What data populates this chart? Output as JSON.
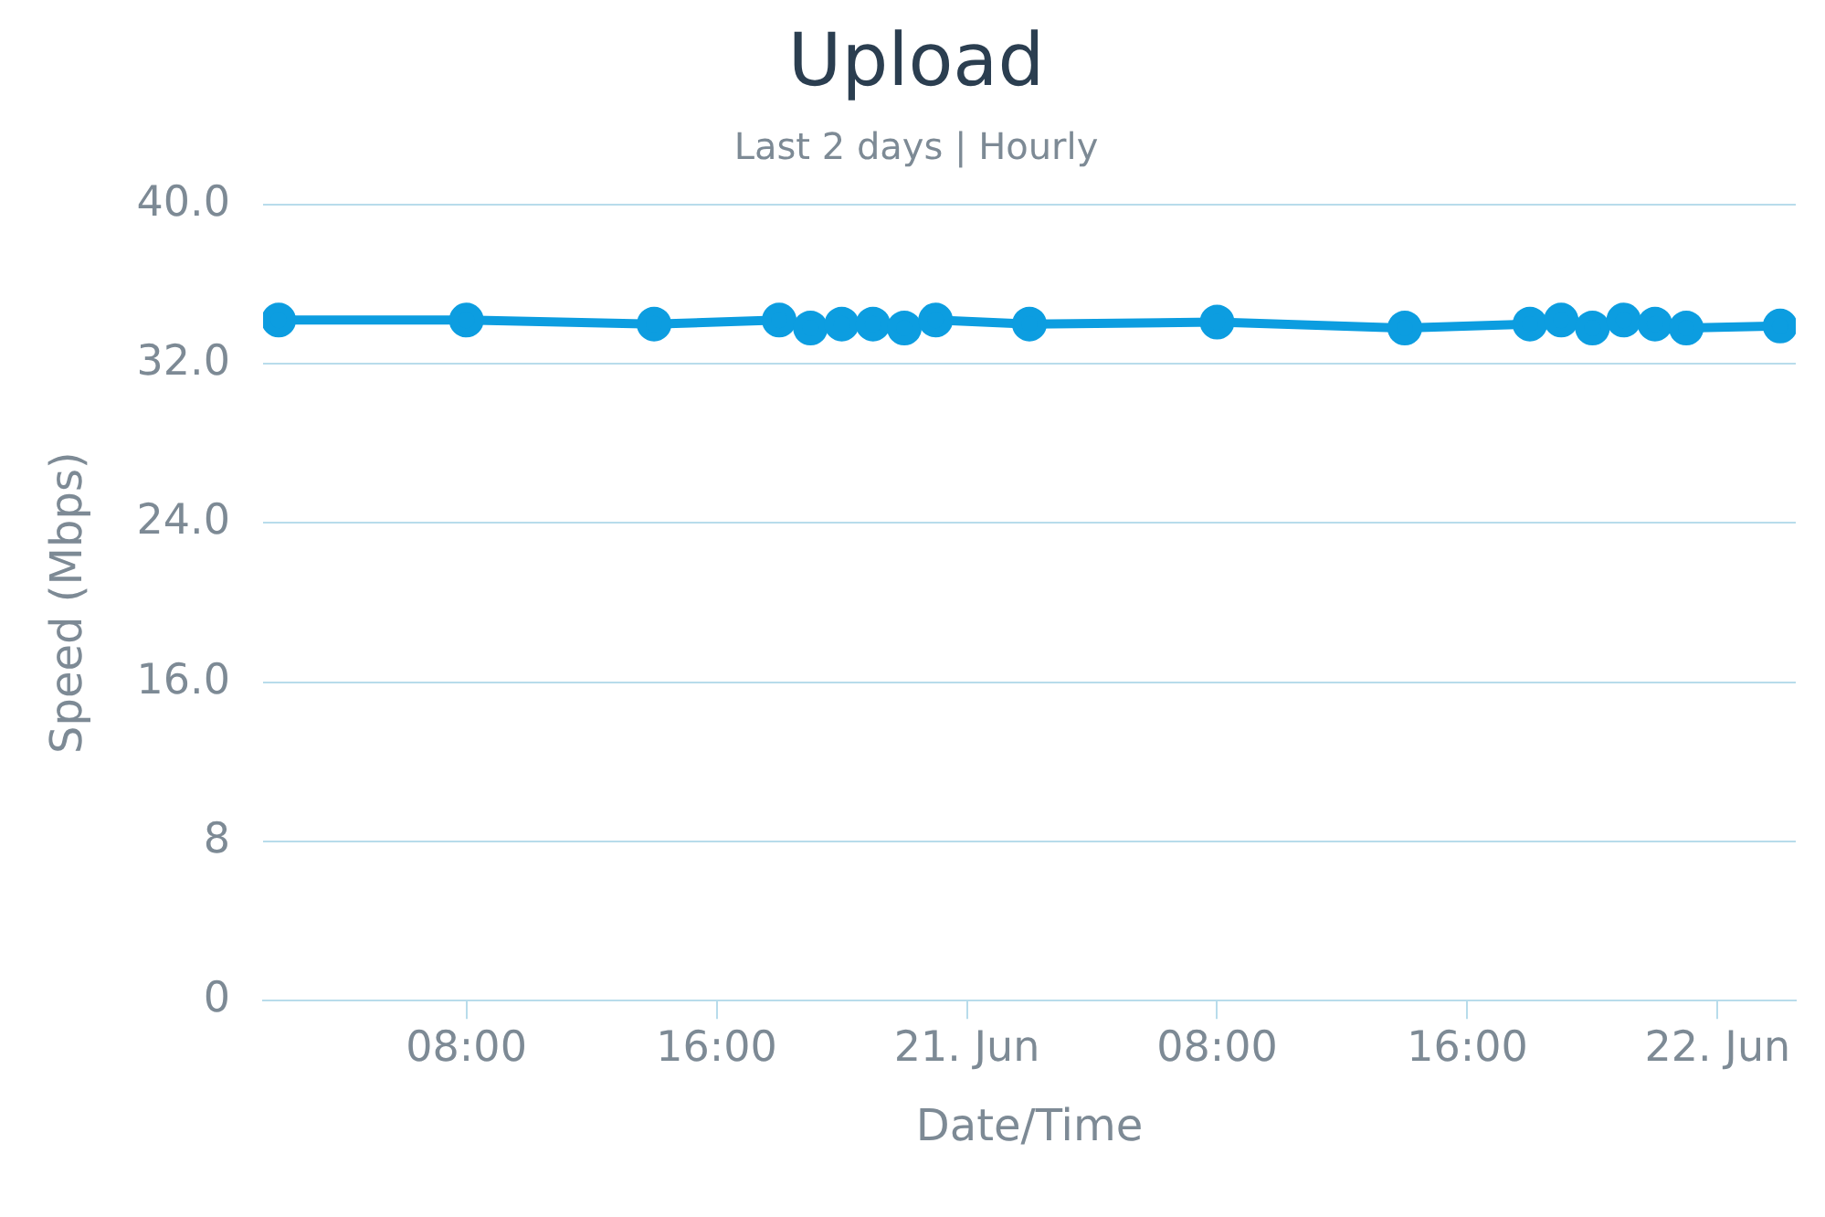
{
  "chart_data": {
    "type": "line",
    "title": "Upload",
    "subtitle": "Last 2 days | Hourly",
    "xlabel": "Date/Time",
    "ylabel": "Speed (Mbps)",
    "x": [
      "--06-20T02:00",
      "--06-20T08:00",
      "--06-20T14:00",
      "--06-20T18:00",
      "--06-20T19:00",
      "--06-20T20:00",
      "--06-20T21:00",
      "--06-20T22:00",
      "--06-20T23:00",
      "--06-21T02:00",
      "--06-21T08:00",
      "--06-21T14:00",
      "--06-21T18:00",
      "--06-21T19:00",
      "--06-21T20:00",
      "--06-21T21:00",
      "--06-21T22:00",
      "--06-21T23:00",
      "--06-22T02:00"
    ],
    "series": [
      {
        "color": "#0c9de0",
        "values": [
          34.2,
          34.2,
          34.0,
          34.2,
          33.8,
          34.0,
          34.0,
          33.8,
          34.2,
          34.0,
          34.1,
          33.8,
          34.0,
          34.2,
          33.8,
          34.2,
          34.0,
          33.8,
          33.9
        ]
      }
    ],
    "xlim": [
      "--06-20T01:30",
      "--06-22T02:30"
    ],
    "xticks": [
      {
        "value": "--06-20T08:00",
        "label": "08:00"
      },
      {
        "value": "--06-20T16:00",
        "label": "16:00"
      },
      {
        "value": "--06-21T00:00",
        "label": "21. Jun"
      },
      {
        "value": "--06-21T08:00",
        "label": "08:00"
      },
      {
        "value": "--06-21T16:00",
        "label": "16:00"
      },
      {
        "value": "--06-22T00:00",
        "label": "22. Jun"
      }
    ],
    "ylim": [
      0,
      40
    ],
    "yticks": [
      {
        "value": 0,
        "label": "0"
      },
      {
        "value": 8,
        "label": "8"
      },
      {
        "value": 16,
        "label": "16.0"
      },
      {
        "value": 24,
        "label": "24.0"
      },
      {
        "value": 32,
        "label": "32.0"
      },
      {
        "value": 40,
        "label": "40.0"
      }
    ],
    "grid": "y",
    "legend": false,
    "marker": "circle",
    "line_style": "solid"
  }
}
